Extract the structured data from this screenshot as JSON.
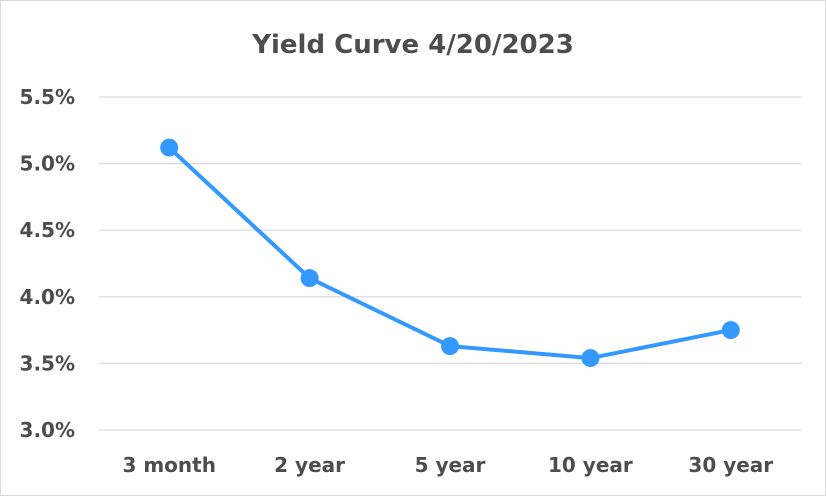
{
  "chart_data": {
    "type": "line",
    "title": "Yield Curve 4/20/2023",
    "categories": [
      "3 month",
      "2 year",
      "5 year",
      "10 year",
      "30 year"
    ],
    "series": [
      {
        "values": [
          5.12,
          4.14,
          3.63,
          3.54,
          3.75
        ]
      }
    ],
    "ylim": [
      3.0,
      5.5
    ],
    "yticks": [
      "3.0%",
      "3.5%",
      "4.0%",
      "4.5%",
      "5.0%",
      "5.5%"
    ],
    "ytick_values": [
      3.0,
      3.5,
      4.0,
      4.5,
      5.0,
      5.5
    ],
    "grid": true,
    "legend": "none",
    "colors": {
      "series": "#3399ff",
      "grid": "#d9d9d9",
      "text": "#4d4d4d"
    }
  }
}
